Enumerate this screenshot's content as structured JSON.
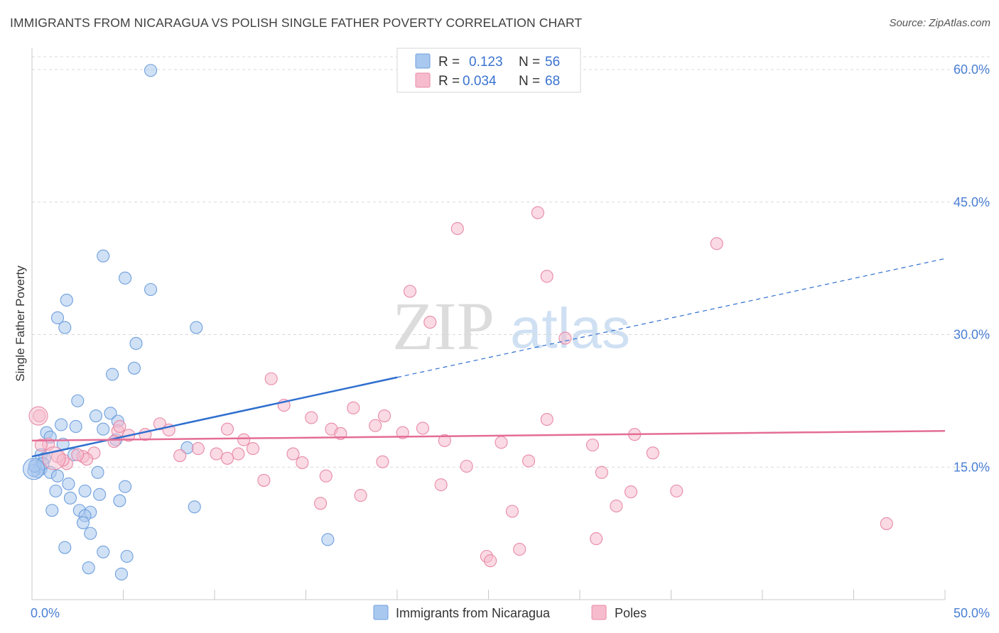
{
  "header": {
    "title": "IMMIGRANTS FROM NICARAGUA VS POLISH SINGLE FATHER POVERTY CORRELATION CHART",
    "source": "Source: ZipAtlas.com"
  },
  "watermark": {
    "zip": "ZIP",
    "atlas": "atlas"
  },
  "colors": {
    "blue_fill": "#a9c8ef",
    "blue_stroke": "#6f9fdc",
    "blue_line": "#2f6fcf",
    "pink_fill": "#f6bccd",
    "pink_stroke": "#e88aa6",
    "pink_line": "#e46d95",
    "grid": "#d8d8d8",
    "tick_text": "#4a7fd4"
  },
  "legend": {
    "rows": [
      {
        "r_label": "R =",
        "r_value": "0.123",
        "n_label": "N =",
        "n_value": "56"
      },
      {
        "r_label": "R =",
        "r_value": "0.034",
        "n_label": "N =",
        "n_value": "68"
      }
    ]
  },
  "chart_data": {
    "type": "scatter",
    "xlabel": "",
    "ylabel": "Single Father Poverty",
    "xlim": [
      0,
      50
    ],
    "ylim": [
      0,
      60
    ],
    "x_tick_labels": [
      "0.0%",
      "50.0%"
    ],
    "y_ticks": [
      15,
      30,
      45,
      60
    ],
    "y_tick_labels": [
      "15.0%",
      "30.0%",
      "45.0%",
      "60.0%"
    ],
    "grid": true,
    "legend_position": "top-center",
    "series": [
      {
        "name": "Immigrants from Nicaragua",
        "color": "#a9c8ef",
        "trend": {
          "x0": 0,
          "y0": 16.2,
          "x1": 50,
          "y1": 38.6,
          "solid_until": 20
        },
        "points": [
          [
            6.5,
            59.9
          ],
          [
            3.9,
            38.9
          ],
          [
            5.1,
            36.4
          ],
          [
            6.5,
            35.1
          ],
          [
            1.9,
            33.9
          ],
          [
            1.4,
            31.9
          ],
          [
            1.8,
            30.8
          ],
          [
            9.0,
            30.8
          ],
          [
            5.7,
            29.0
          ],
          [
            5.6,
            26.2
          ],
          [
            4.4,
            25.5
          ],
          [
            2.5,
            22.5
          ],
          [
            3.5,
            20.8
          ],
          [
            4.3,
            21.1
          ],
          [
            4.7,
            20.2
          ],
          [
            3.9,
            19.3
          ],
          [
            1.6,
            19.8
          ],
          [
            2.4,
            19.6
          ],
          [
            0.8,
            18.9
          ],
          [
            1.0,
            18.4
          ],
          [
            4.6,
            18.1
          ],
          [
            1.7,
            17.6
          ],
          [
            8.5,
            17.2
          ],
          [
            0.5,
            16.4
          ],
          [
            0.7,
            16.0
          ],
          [
            2.3,
            16.4
          ],
          [
            0.2,
            15.3
          ],
          [
            0.4,
            15.0
          ],
          [
            0.5,
            14.8
          ],
          [
            0.3,
            14.5
          ],
          [
            1.0,
            14.4
          ],
          [
            1.4,
            14.0
          ],
          [
            3.6,
            14.4
          ],
          [
            0.1,
            14.6
          ],
          [
            2.0,
            13.1
          ],
          [
            5.1,
            12.8
          ],
          [
            1.3,
            12.3
          ],
          [
            2.9,
            12.3
          ],
          [
            2.1,
            11.5
          ],
          [
            3.7,
            11.9
          ],
          [
            4.8,
            11.2
          ],
          [
            8.9,
            10.5
          ],
          [
            1.1,
            10.1
          ],
          [
            2.6,
            10.1
          ],
          [
            3.2,
            9.9
          ],
          [
            2.9,
            9.5
          ],
          [
            2.8,
            8.7
          ],
          [
            3.2,
            7.5
          ],
          [
            16.2,
            6.8
          ],
          [
            1.8,
            5.9
          ],
          [
            3.9,
            5.4
          ],
          [
            5.2,
            4.9
          ],
          [
            3.1,
            3.6
          ],
          [
            4.9,
            2.9
          ],
          [
            0.15,
            15.1
          ],
          [
            0.6,
            15.4
          ]
        ]
      },
      {
        "name": "Poles",
        "color": "#f6bccd",
        "trend": {
          "x0": 0,
          "y0": 18.0,
          "x1": 50,
          "y1": 19.1,
          "solid_until": 50
        },
        "points": [
          [
            27.7,
            43.8
          ],
          [
            23.3,
            42.0
          ],
          [
            37.5,
            40.3
          ],
          [
            28.2,
            36.6
          ],
          [
            20.7,
            34.9
          ],
          [
            21.8,
            31.4
          ],
          [
            29.2,
            29.6
          ],
          [
            13.1,
            25.0
          ],
          [
            13.8,
            22.0
          ],
          [
            17.6,
            21.7
          ],
          [
            15.3,
            20.6
          ],
          [
            19.3,
            20.8
          ],
          [
            28.2,
            20.4
          ],
          [
            7.0,
            19.9
          ],
          [
            7.5,
            19.2
          ],
          [
            10.7,
            19.3
          ],
          [
            16.4,
            19.3
          ],
          [
            18.8,
            19.7
          ],
          [
            21.4,
            19.4
          ],
          [
            4.7,
            19.1
          ],
          [
            6.2,
            18.7
          ],
          [
            16.9,
            18.8
          ],
          [
            20.3,
            18.9
          ],
          [
            33.0,
            18.7
          ],
          [
            11.6,
            18.1
          ],
          [
            22.6,
            18.0
          ],
          [
            25.7,
            17.8
          ],
          [
            30.7,
            17.5
          ],
          [
            4.5,
            17.9
          ],
          [
            9.1,
            17.1
          ],
          [
            12.1,
            17.1
          ],
          [
            10.1,
            16.5
          ],
          [
            11.3,
            16.5
          ],
          [
            14.3,
            16.5
          ],
          [
            34.0,
            16.6
          ],
          [
            8.1,
            16.3
          ],
          [
            10.7,
            16.0
          ],
          [
            14.8,
            15.5
          ],
          [
            19.2,
            15.6
          ],
          [
            27.2,
            15.7
          ],
          [
            23.8,
            15.1
          ],
          [
            31.2,
            14.4
          ],
          [
            16.1,
            14.0
          ],
          [
            12.7,
            13.5
          ],
          [
            22.4,
            13.0
          ],
          [
            32.8,
            12.2
          ],
          [
            35.3,
            12.3
          ],
          [
            18.0,
            11.8
          ],
          [
            15.8,
            10.9
          ],
          [
            32.0,
            10.6
          ],
          [
            26.3,
            10.0
          ],
          [
            46.8,
            8.6
          ],
          [
            30.9,
            6.9
          ],
          [
            26.7,
            5.7
          ],
          [
            24.9,
            4.9
          ],
          [
            25.1,
            4.4
          ],
          [
            2.8,
            16.2
          ],
          [
            3.4,
            16.6
          ],
          [
            3.0,
            15.9
          ],
          [
            2.5,
            16.4
          ],
          [
            1.9,
            15.4
          ],
          [
            1.4,
            16.2
          ],
          [
            0.9,
            17.6
          ],
          [
            0.5,
            17.5
          ],
          [
            0.4,
            20.8
          ],
          [
            1.7,
            15.8
          ],
          [
            4.8,
            19.6
          ],
          [
            5.3,
            18.6
          ]
        ]
      }
    ]
  }
}
